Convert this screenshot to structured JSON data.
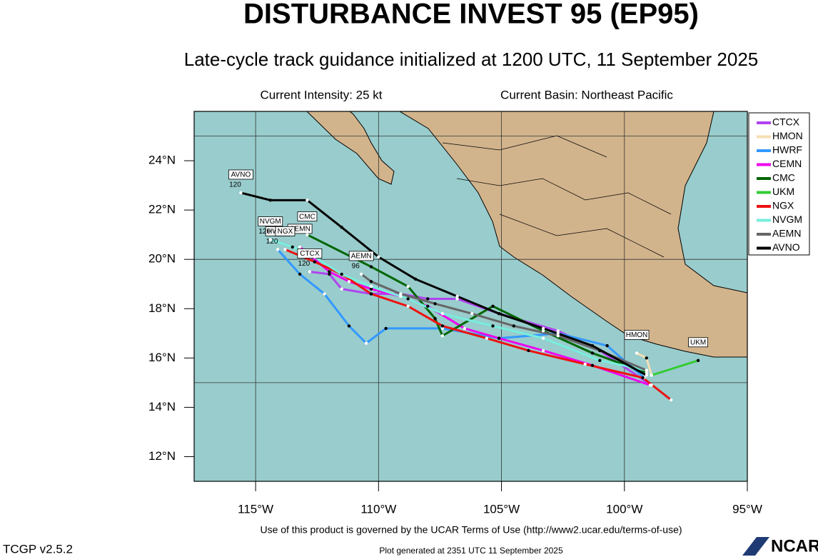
{
  "header": {
    "title": "DISTURBANCE INVEST 95 (EP95)",
    "subtitle": "Late-cycle track guidance initialized at 1200 UTC, 11 September 2025",
    "intensity": "Current Intensity: 25 kt",
    "basin": "Current Basin: Northeast Pacific"
  },
  "chart_data": {
    "type": "track",
    "xlim": [
      -117.5,
      -95
    ],
    "ylim": [
      11,
      26
    ],
    "xticks": [
      {
        "value": -115,
        "label": "115°W"
      },
      {
        "value": -110,
        "label": "110°W"
      },
      {
        "value": -105,
        "label": "105°W"
      },
      {
        "value": -100,
        "label": "100°W"
      },
      {
        "value": -95,
        "label": "95°W"
      }
    ],
    "yticks": [
      {
        "value": 12,
        "label": "12°N"
      },
      {
        "value": 14,
        "label": "14°N"
      },
      {
        "value": 16,
        "label": "16°N"
      },
      {
        "value": 18,
        "label": "18°N"
      },
      {
        "value": 20,
        "label": "20°N"
      },
      {
        "value": 22,
        "label": "22°N"
      },
      {
        "value": 24,
        "label": "24°N"
      }
    ],
    "ygrid": [
      15,
      20,
      25
    ],
    "grid": true,
    "legend": "right",
    "series": [
      {
        "name": "CTCX",
        "color": "#b044f0",
        "end_tau": 120,
        "x": [
          -98.9,
          -101.0,
          -102.7,
          -105.1,
          -106.8,
          -108.0,
          -109.1,
          -110.3,
          -111.5,
          -112.0,
          -112.8
        ],
        "y": [
          14.9,
          16.3,
          17.1,
          17.8,
          18.4,
          18.4,
          18.6,
          18.6,
          18.8,
          19.4,
          19.5
        ]
      },
      {
        "name": "HMON",
        "color": "#f5deb3",
        "x": [
          -98.9,
          -99.1,
          -99.5
        ],
        "y": [
          15.3,
          16.0,
          16.2
        ]
      },
      {
        "name": "HWRF",
        "color": "#3399ff",
        "end_tau": 120,
        "x": [
          -99.2,
          -100.7,
          -102.7,
          -105.1,
          -107.4,
          -109.7,
          -110.5,
          -111.2,
          -112.2,
          -113.2,
          -114.1
        ],
        "y": [
          15.2,
          16.5,
          17.0,
          16.8,
          17.2,
          17.2,
          16.6,
          17.3,
          18.6,
          19.4,
          20.4
        ]
      },
      {
        "name": "CEMN",
        "color": "#ee00ee",
        "x": [
          -98.95,
          -101.3,
          -103.3,
          -105.1,
          -106.5,
          -108.0,
          -109.1,
          -110.3,
          -111.2,
          -112.0,
          -113.2
        ],
        "y": [
          14.9,
          15.7,
          16.3,
          16.8,
          17.2,
          18.1,
          18.5,
          18.8,
          19.1,
          19.5,
          20.5
        ]
      },
      {
        "name": "CMC",
        "color": "#006600",
        "x": [
          -99.1,
          -101.3,
          -103.3,
          -105.35,
          -107.4,
          -107.7,
          -108.8,
          -110.3,
          -112.9
        ],
        "y": [
          15.4,
          16.2,
          17.1,
          18.1,
          16.9,
          17.6,
          18.9,
          19.7,
          21.0
        ]
      },
      {
        "name": "UKM",
        "color": "#33cc33",
        "x": [
          -98.9,
          -97.0
        ],
        "y": [
          15.3,
          15.9
        ]
      },
      {
        "name": "NGX",
        "color": "#ee1111",
        "x": [
          -98.1,
          -99.25,
          -101.6,
          -103.9,
          -105.6,
          -107.4,
          -108.8,
          -110.3,
          -111.5,
          -112.6,
          -113.8
        ],
        "y": [
          14.3,
          15.2,
          15.75,
          16.3,
          16.8,
          17.3,
          18.1,
          18.6,
          19.4,
          19.9,
          20.4
        ]
      },
      {
        "name": "NVGM",
        "color": "#77eedd",
        "end_tau": 120,
        "x": [
          -99.1,
          -101.0,
          -103.3,
          -105.35,
          -107.4,
          -108.8,
          -110.3,
          -111.5,
          -112.6,
          -113.5,
          -114.4
        ],
        "y": [
          15.5,
          15.9,
          16.8,
          17.3,
          17.8,
          18.4,
          18.9,
          19.4,
          20.1,
          20.5,
          20.8
        ]
      },
      {
        "name": "AEMN",
        "color": "#666666",
        "end_tau": 96,
        "x": [
          -99.1,
          -101.0,
          -102.7,
          -104.5,
          -106.2,
          -107.7,
          -109.1,
          -110.3,
          -110.7
        ],
        "y": [
          15.5,
          16.3,
          16.9,
          17.3,
          17.8,
          18.2,
          18.6,
          19.1,
          19.4
        ]
      },
      {
        "name": "AVNO",
        "color": "#000000",
        "end_tau": 120,
        "x": [
          -99.1,
          -101.3,
          -103.3,
          -105.1,
          -106.8,
          -108.5,
          -110.0,
          -111.5,
          -112.9,
          -114.4,
          -115.6
        ],
        "y": [
          15.3,
          16.5,
          17.2,
          17.8,
          18.5,
          19.2,
          20.1,
          21.3,
          22.4,
          22.4,
          22.7
        ]
      }
    ]
  },
  "footer": {
    "terms": "Use of this product is governed by the UCAR Terms of Use (http://www2.ucar.edu/terms-of-use)",
    "version": "TCGP v2.5.2",
    "generated": "Plot generated at 2351 UTC   11 September 2025",
    "logo": "NCAR"
  }
}
